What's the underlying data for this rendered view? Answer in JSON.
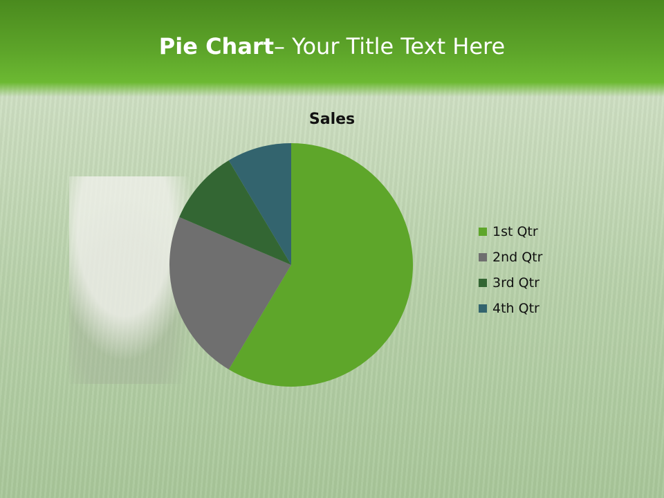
{
  "slide": {
    "title_bold": "Pie Chart",
    "title_rest": "– Your Title Text Here"
  },
  "chart_data": {
    "type": "pie",
    "title": "Sales",
    "categories": [
      "1st Qtr",
      "2nd Qtr",
      "3rd Qtr",
      "4th Qtr"
    ],
    "values": [
      8.2,
      3.2,
      1.4,
      1.2
    ],
    "colors": [
      "#5ea62a",
      "#6f6f6f",
      "#336633",
      "#33646e"
    ],
    "legend_position": "right",
    "start_angle": "top, clockwise"
  }
}
